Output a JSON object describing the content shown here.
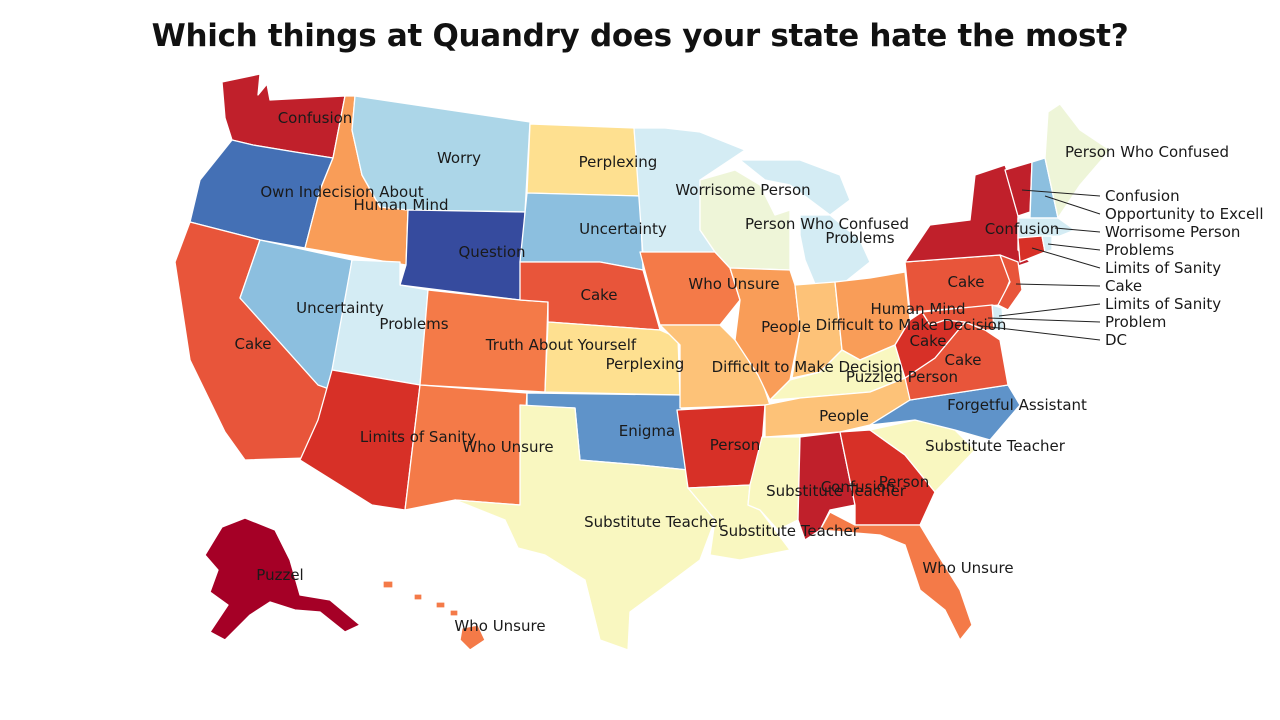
{
  "title": "Which things at Quandry does your state hate the most?",
  "colors": {
    "c1": "#a50026",
    "c2": "#c0202b",
    "c3": "#d73027",
    "c4": "#e8553a",
    "c5": "#f47a48",
    "c6": "#f99d58",
    "c7": "#fdc278",
    "c8": "#fee090",
    "c9": "#f9f7c0",
    "c10": "#eef5d8",
    "c11": "#d4ecf4",
    "c12": "#acd6e8",
    "c13": "#8cbfdf",
    "c14": "#5f93c9",
    "c15": "#4470b5",
    "c16": "#364b9e"
  },
  "states": {
    "WA": "Confusion",
    "OR": "Own Indecision About",
    "ID": "Human Mind",
    "MT": "Worry",
    "WY": "Question",
    "CA": "Cake",
    "NV": "Uncertainty",
    "UT": "Problems",
    "AZ": "Limits of Sanity",
    "CO": "Truth About Yourself",
    "NM": "Who Unsure",
    "ND": "Perplexing",
    "SD": "Uncertainty",
    "NE": "Cake",
    "KS": "Perplexing",
    "OK": "Enigma",
    "TX": "Substitute Teacher",
    "MN": "Worrisome Person",
    "IA": "Who Unsure",
    "MO": "Difficult to Make Decision",
    "AR": "Person",
    "LA": "Substitute Teacher",
    "WI": "Person Who Confused",
    "MI": "Problems",
    "IL": "People",
    "IN": "Difficult to Make Decision",
    "OH": "Human Mind",
    "KY": "Puzzled Person",
    "TN": "People",
    "MS": "Substitute Teacher",
    "AL": "Confusion",
    "GA": "Person",
    "FL": "Who Unsure",
    "SC": "Substitute Teacher",
    "NC": "Forgetful Assistant",
    "VA": "Cake",
    "WV": "Cake",
    "PA": "Cake",
    "NY": "Confusion",
    "ME": "Person Who Confused",
    "AK": "Puzzel",
    "HI": "Who Unsure"
  },
  "callouts": {
    "VT": "Confusion",
    "NH": "Opportunity to Excell",
    "MA": "Worrisome Person",
    "RI": "Problems",
    "CT": "Limits of Sanity",
    "NJ": "Cake",
    "DE": "Limits of Sanity",
    "MD": "Problem",
    "DC": "DC"
  }
}
